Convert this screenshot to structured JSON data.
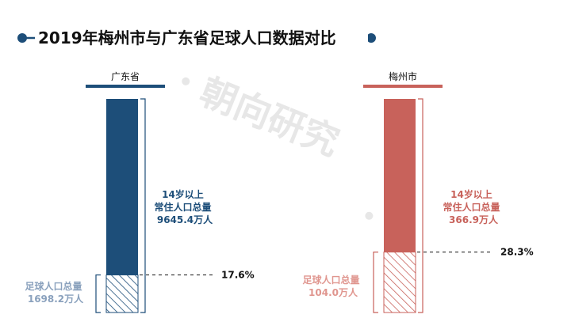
{
  "chart_data": {
    "type": "bar",
    "title": "2019年梅州市与广东省足球人口数据对比",
    "watermark": "朝向研究",
    "categories": [
      "广东省",
      "梅州市"
    ],
    "series": [
      {
        "name": "14岁以上常住人口总量",
        "values": [
          9645.4,
          366.9
        ]
      },
      {
        "name": "足球人口总量",
        "values": [
          1698.2,
          104.0
        ]
      }
    ],
    "share_percent": [
      17.6,
      28.3
    ],
    "total_labels": [
      [
        "14岁以上",
        "常住人口总量",
        "9645.4万人"
      ],
      [
        "14岁以上",
        "常住人口总量",
        "366.9万人"
      ]
    ],
    "football_labels": [
      [
        "足球人口总量",
        "1698.2万人"
      ],
      [
        "足球人口总量",
        "104.0万人"
      ]
    ],
    "percent_labels": [
      "17.6%",
      "28.3%"
    ],
    "colors": {
      "guangdong": "#1d4e79",
      "meizhou": "#c8625b",
      "title_bar": "#1d4e79"
    }
  }
}
